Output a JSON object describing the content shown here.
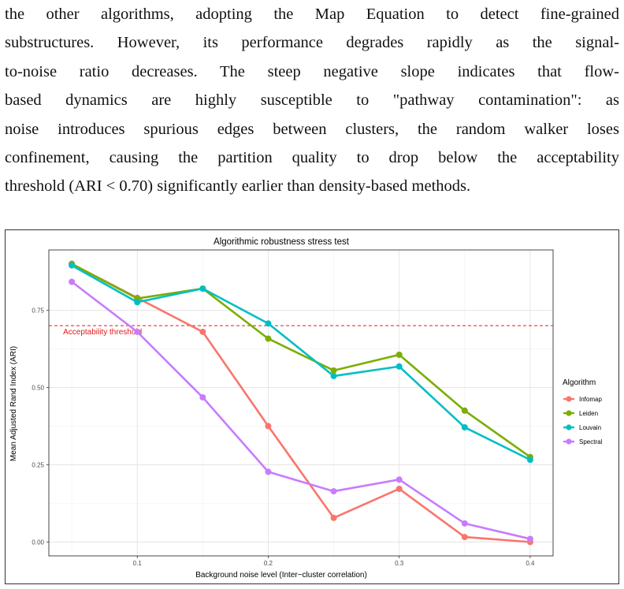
{
  "paragraph": {
    "lines": [
      "the other algorithms, adopting the Map Equation to detect fine-grained",
      "substructures.  However, its performance degrades rapidly as the signal-",
      "to-noise ratio decreases.  The steep negative slope indicates that flow-",
      "based dynamics are highly susceptible to \"pathway contamination\":  as",
      "noise introduces spurious edges between clusters, the random walker loses",
      "confinement, causing the partition quality to drop below the acceptability",
      "threshold (ARI < 0.70) significantly earlier than density-based methods."
    ]
  },
  "chart_data": {
    "type": "line",
    "title": "Algorithmic robustness stress test",
    "xlabel": "Background noise level (Inter−cluster correlation)",
    "ylabel": "Mean Adjusted Rand Index (ARI)",
    "x": [
      0.05,
      0.1,
      0.15,
      0.2,
      0.25,
      0.3,
      0.35,
      0.4
    ],
    "xlim": [
      0.0325,
      0.4175
    ],
    "ylim": [
      -0.045,
      0.945
    ],
    "xticks": [
      0.1,
      0.2,
      0.3,
      0.4
    ],
    "xtick_labels": [
      "0.1",
      "0.2",
      "0.3",
      "0.4"
    ],
    "yticks": [
      0.0,
      0.25,
      0.5,
      0.75
    ],
    "ytick_labels": [
      "0.00",
      "0.25",
      "0.50",
      "0.75"
    ],
    "grid": true,
    "legend_title": "Algorithm",
    "legend_position": "right",
    "threshold": {
      "value": 0.7,
      "label": "Acceptability threshold",
      "color": "#e41a1c"
    },
    "series": [
      {
        "name": "Infomap",
        "color": "#f8766d",
        "values": [
          0.9,
          0.79,
          0.68,
          0.375,
          0.078,
          0.172,
          0.016,
          0.0
        ]
      },
      {
        "name": "Leiden",
        "color": "#7cae00",
        "values": [
          0.9,
          0.788,
          0.82,
          0.658,
          0.555,
          0.606,
          0.425,
          0.275
        ]
      },
      {
        "name": "Louvain",
        "color": "#00bfc4",
        "values": [
          0.895,
          0.776,
          0.82,
          0.707,
          0.537,
          0.568,
          0.371,
          0.266
        ]
      },
      {
        "name": "Spectral",
        "color": "#c77cff",
        "values": [
          0.842,
          0.68,
          0.468,
          0.227,
          0.164,
          0.202,
          0.06,
          0.01
        ]
      }
    ]
  }
}
